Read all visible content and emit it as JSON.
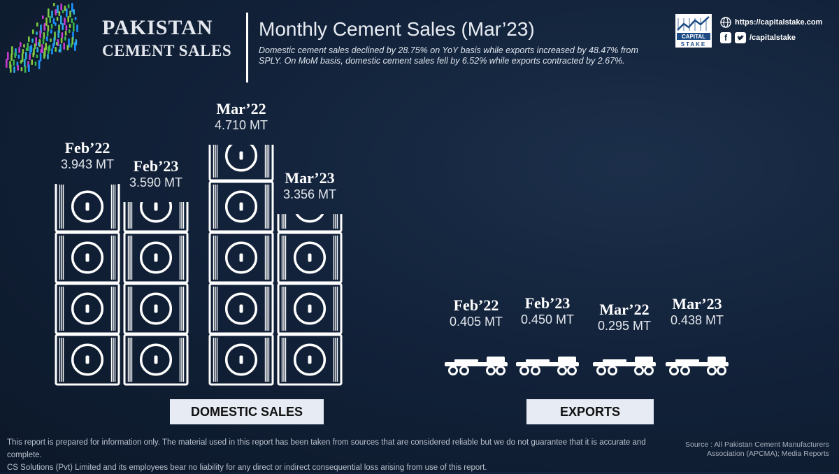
{
  "brand": {
    "title_line1": "PAKISTAN",
    "title_line2": "CEMENT SALES"
  },
  "header": {
    "title": "Monthly Cement Sales (Mar’23)",
    "subtitle": "Domestic cement sales declined by 28.75% on YoY basis while exports increased by 48.47% from SPLY. On MoM basis, domestic cement sales fell by 6.52% while exports contracted by 2.67%."
  },
  "contact": {
    "logo_text_1": "CAPITAL",
    "logo_text_2": "STAKE",
    "website": "https://capitalstake.com",
    "social_handle": "/capitalstake",
    "icons": [
      "globe-icon",
      "facebook-icon",
      "twitter-icon"
    ]
  },
  "chart_data": [
    {
      "type": "bar",
      "section_label": "DOMESTIC SALES",
      "unit": "MT",
      "categories": [
        "Feb’22",
        "Feb’23",
        "Mar’22",
        "Mar’23"
      ],
      "values": [
        3.943,
        3.59,
        4.71,
        3.356
      ],
      "value_labels": [
        "3.943 MT",
        "3.590 MT",
        "4.710 MT",
        "3.356 MT"
      ]
    },
    {
      "type": "bar",
      "section_label": "EXPORTS",
      "unit": "MT",
      "categories": [
        "Feb’22",
        "Feb’23",
        "Mar’22",
        "Mar’23"
      ],
      "values": [
        0.405,
        0.45,
        0.295,
        0.438
      ],
      "value_labels": [
        "0.405 MT",
        "0.450 MT",
        "0.295 MT",
        "0.438 MT"
      ]
    }
  ],
  "colors": {
    "background": "#12223a",
    "bar_fill": "#ffffff",
    "section_box": "#e6ebf4"
  },
  "footer": {
    "disclaimer_line1": "This report is prepared for information only. The material used in this report has been taken from sources that are considered reliable but we do not guarantee that it is accurate and complete.",
    "disclaimer_line2": "CS Solutions (Pvt) Limited and its employees bear no liability for any direct or indirect consequential loss arising from use of this report.",
    "source_line1": "Source : All Pakistan Cement Manufacturers",
    "source_line2": "Association (APCMA); Media Reports"
  }
}
